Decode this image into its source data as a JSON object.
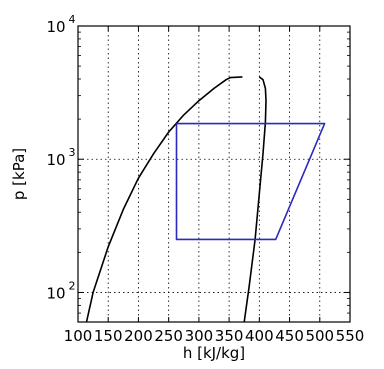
{
  "chart_data": {
    "type": "line",
    "xlabel": "h [kJ/kg]",
    "ylabel": "p [kPa]",
    "xlim": [
      100,
      550
    ],
    "ylim": [
      60,
      10000
    ],
    "yscale": "log",
    "grid": true,
    "x_ticks": [
      100,
      150,
      200,
      250,
      300,
      350,
      400,
      450,
      500,
      550
    ],
    "x_tick_labels": [
      "100",
      "150",
      "200",
      "250",
      "300",
      "350",
      "400",
      "450",
      "500",
      "550"
    ],
    "y_ticks": [
      100,
      1000,
      10000
    ],
    "y_tick_labels": [
      {
        "base": "10",
        "exp": "2"
      },
      {
        "base": "10",
        "exp": "3"
      },
      {
        "base": "10",
        "exp": "4"
      }
    ],
    "series": [
      {
        "role": "saturated-liquid-line",
        "color": "#000000",
        "points": [
          [
            114,
            60
          ],
          [
            125,
            100
          ],
          [
            150,
            220
          ],
          [
            175,
            420
          ],
          [
            200,
            720
          ],
          [
            225,
            1100
          ],
          [
            250,
            1600
          ],
          [
            275,
            2150
          ],
          [
            300,
            2750
          ],
          [
            325,
            3400
          ],
          [
            345,
            3950
          ],
          [
            352,
            4100
          ],
          [
            372,
            4150
          ]
        ]
      },
      {
        "role": "saturated-vapor-line",
        "color": "#000000",
        "points": [
          [
            400,
            4150
          ],
          [
            406,
            3950
          ],
          [
            410,
            3400
          ],
          [
            411,
            2750
          ],
          [
            410,
            1900
          ],
          [
            406,
            1100
          ],
          [
            400,
            550
          ],
          [
            393,
            250
          ],
          [
            383,
            110
          ],
          [
            375,
            60
          ]
        ]
      },
      {
        "role": "refrigeration-cycle",
        "color": "#2a2ac0",
        "points": [
          [
            263,
            1850
          ],
          [
            263,
            250
          ],
          [
            427,
            250
          ],
          [
            508,
            1850
          ],
          [
            263,
            1850
          ]
        ]
      }
    ]
  }
}
